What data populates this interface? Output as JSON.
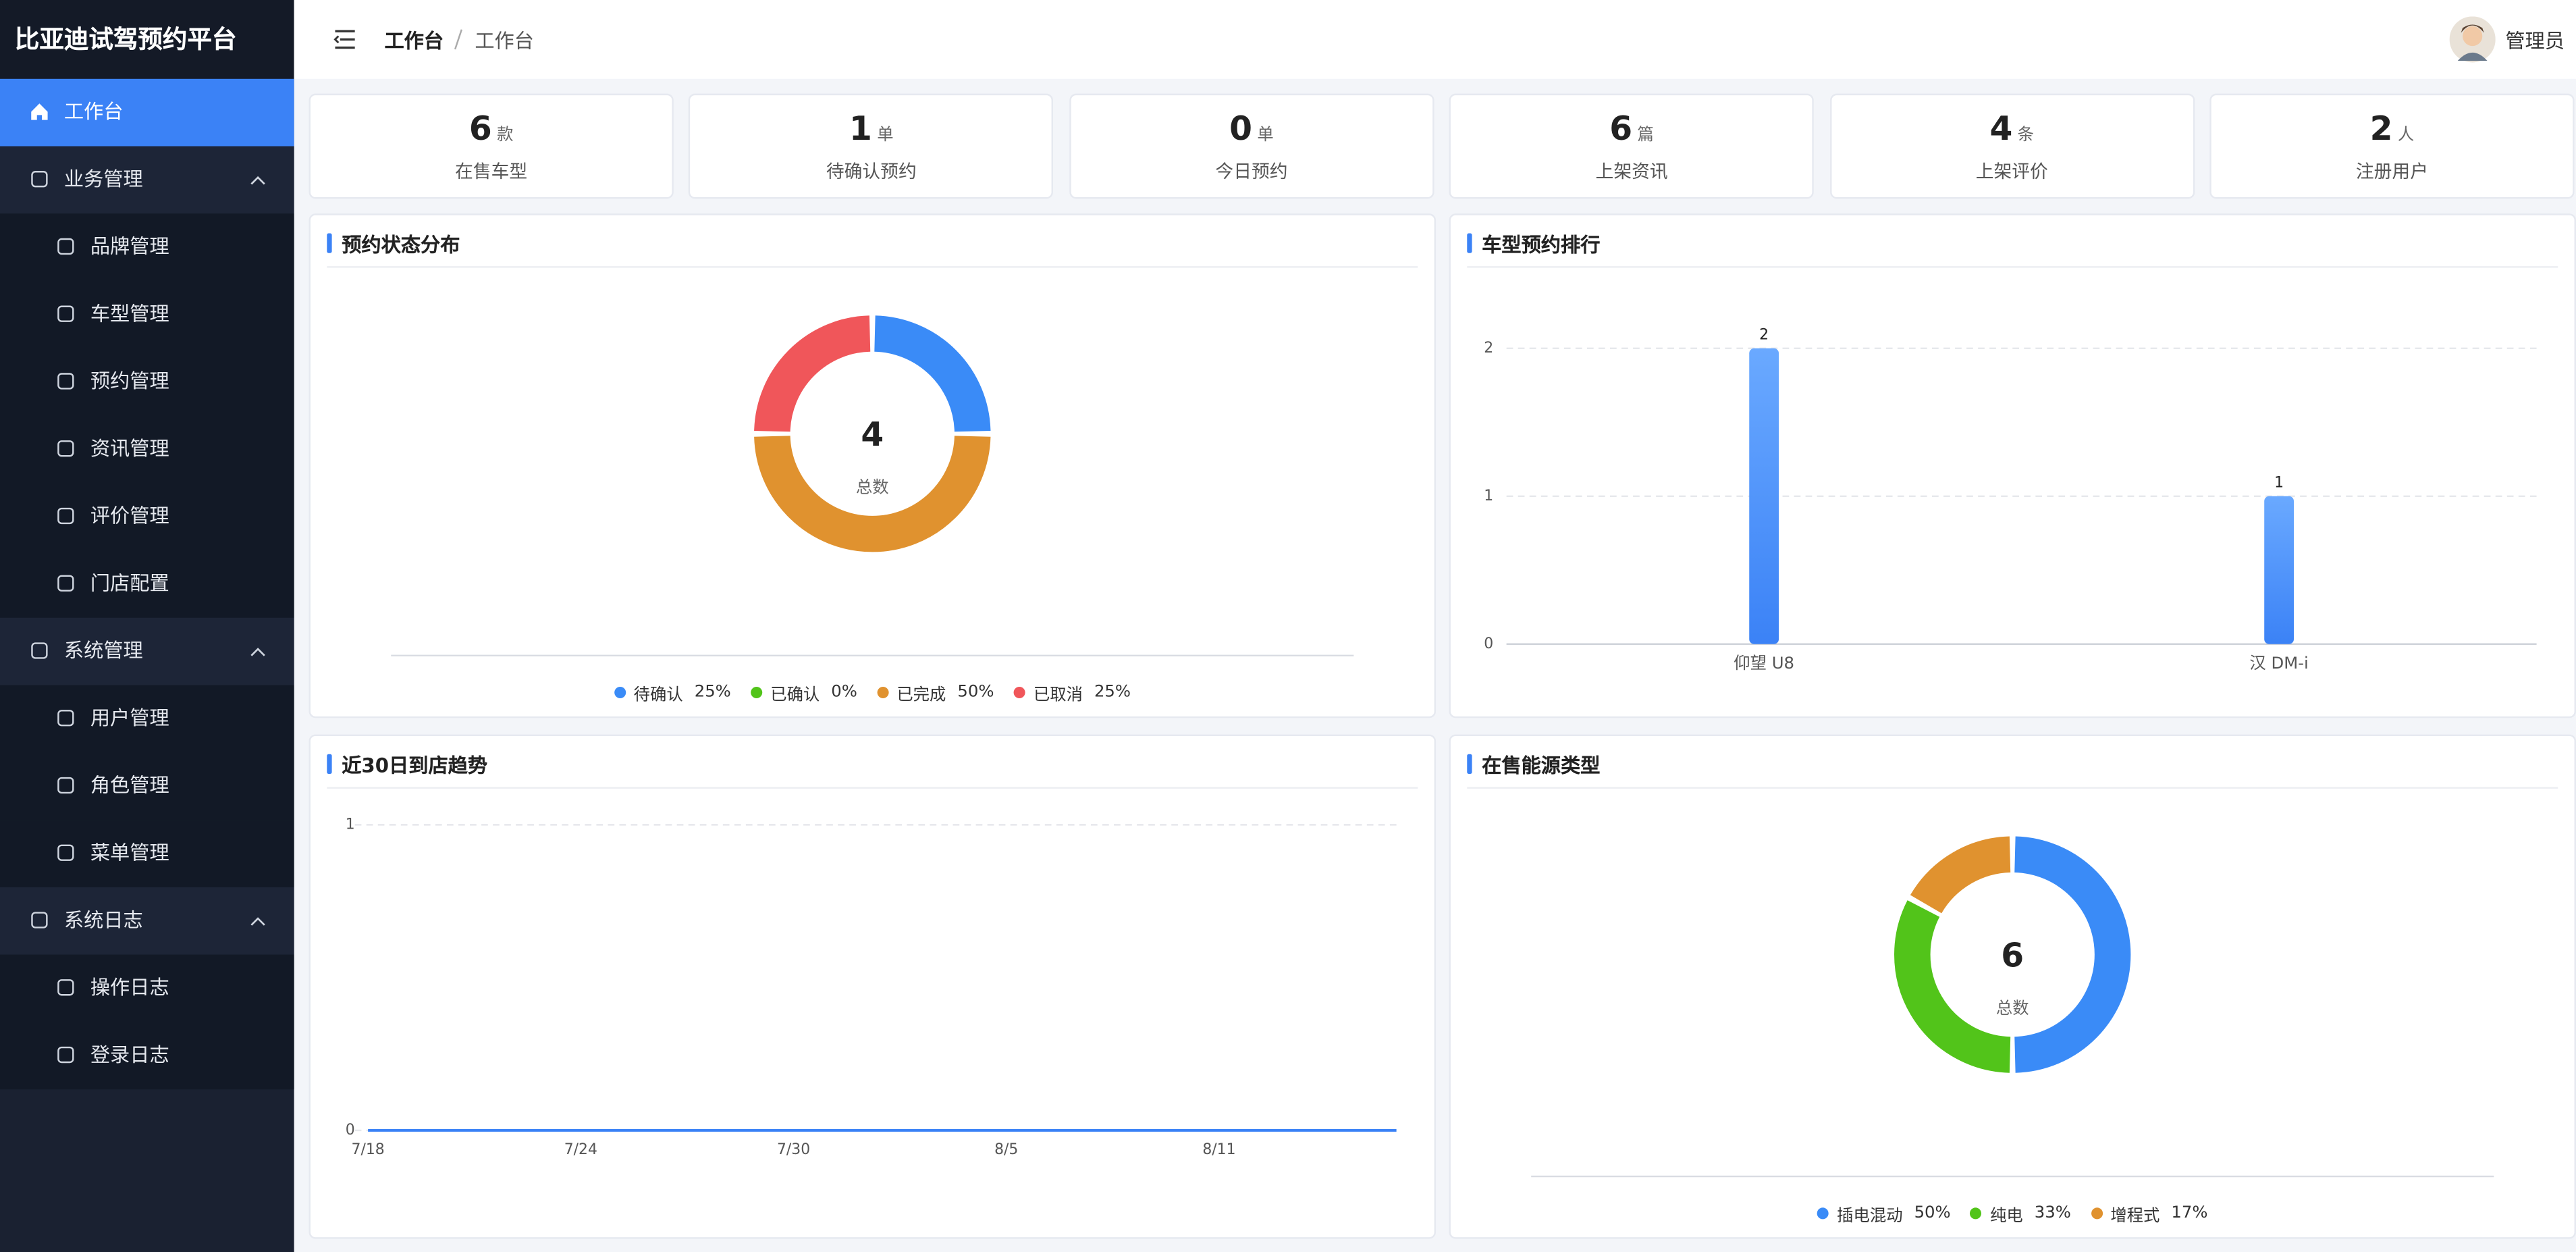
{
  "sidebar": {
    "title": "比亚迪试驾预约平台",
    "menu": [
      {
        "label": "工作台"
      },
      {
        "label": "业务管理",
        "children": [
          "品牌管理",
          "车型管理",
          "预约管理",
          "资讯管理",
          "评价管理",
          "门店配置"
        ]
      },
      {
        "label": "系统管理",
        "children": [
          "用户管理",
          "角色管理",
          "菜单管理"
        ]
      },
      {
        "label": "系统日志",
        "children": [
          "操作日志",
          "登录日志"
        ]
      }
    ]
  },
  "header": {
    "breadcrumb": [
      "工作台",
      "工作台"
    ],
    "user": "管理员"
  },
  "stats": [
    {
      "value": 6,
      "unit": "款",
      "label": "在售车型"
    },
    {
      "value": 1,
      "unit": "单",
      "label": "待确认预约"
    },
    {
      "value": 0,
      "unit": "单",
      "label": "今日预约"
    },
    {
      "value": 6,
      "unit": "篇",
      "label": "上架资讯"
    },
    {
      "value": 4,
      "unit": "条",
      "label": "上架评价"
    },
    {
      "value": 2,
      "unit": "人",
      "label": "注册用户"
    }
  ],
  "chart_data": [
    {
      "type": "pie",
      "title": "预约状态分布",
      "total": 4,
      "total_label": "总数",
      "categories": [
        "待确认",
        "已确认",
        "已完成",
        "已取消"
      ],
      "values": [
        25,
        0,
        50,
        25
      ],
      "value_labels": [
        "25%",
        "0%",
        "50%",
        "25%"
      ],
      "colors": [
        "#3a8bf7",
        "#52c41a",
        "#e0922f",
        "#f0565a"
      ]
    },
    {
      "type": "bar",
      "title": "车型预约排行",
      "categories": [
        "仰望 U8",
        "汉 DM-i"
      ],
      "values": [
        2,
        1
      ],
      "color": "#3b82f6",
      "ylim": [
        0,
        2
      ],
      "yticks": [
        0,
        1,
        2
      ],
      "grid": true
    },
    {
      "type": "line",
      "title": "近30日到店趋势",
      "categories": [
        "7/18",
        null,
        null,
        null,
        null,
        null,
        "7/24",
        null,
        null,
        null,
        null,
        null,
        "7/30",
        null,
        null,
        null,
        null,
        null,
        "8/5",
        null,
        null,
        null,
        null,
        null,
        "8/11",
        null,
        null,
        null,
        null,
        null
      ],
      "values": [
        0,
        0,
        0,
        0,
        0,
        0,
        0,
        0,
        0,
        0,
        0,
        0,
        0,
        0,
        0,
        0,
        0,
        0,
        0,
        0,
        0,
        0,
        0,
        0,
        0,
        0,
        0,
        0,
        0,
        0
      ],
      "color": "#3b82f6",
      "ylim": [
        0,
        1
      ],
      "yticks": [
        0,
        1
      ],
      "grid": true
    },
    {
      "type": "pie",
      "title": "在售能源类型",
      "total": 6,
      "total_label": "总数",
      "categories": [
        "插电混动",
        "纯电",
        "增程式"
      ],
      "values": [
        50,
        33,
        17
      ],
      "value_labels": [
        "50%",
        "33%",
        "17%"
      ],
      "colors": [
        "#3a8bf7",
        "#52c41a",
        "#e0922f"
      ]
    }
  ]
}
